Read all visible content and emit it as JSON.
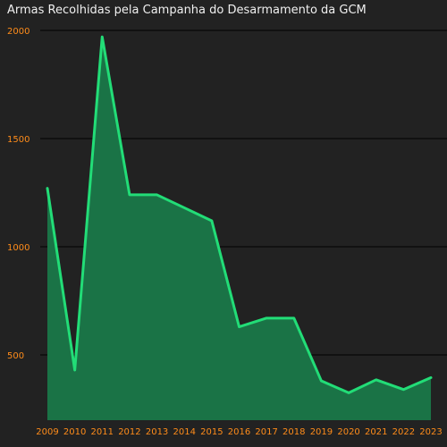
{
  "chart_data": {
    "type": "area",
    "title": "Armas Recolhidas pela Campanha do Desarmamento da GCM",
    "xlabel": "",
    "ylabel": "",
    "x": [
      "2009",
      "2010",
      "2011",
      "2012",
      "2013",
      "2014",
      "2015",
      "2016",
      "2017",
      "2018",
      "2019",
      "2020",
      "2021",
      "2022",
      "2023"
    ],
    "series": [
      {
        "values": [
          1270,
          430,
          1970,
          1240,
          1240,
          1180,
          1120,
          630,
          670,
          670,
          380,
          325,
          385,
          340,
          395
        ]
      }
    ],
    "ylim": [
      200,
      2000
    ],
    "yticks": [
      500,
      1000,
      1500,
      2000
    ],
    "grid": true,
    "colors": {
      "background": "#222222",
      "line": "#22dd77",
      "fill": "#1a7346",
      "tick_labels": "#ff8c1a",
      "gridlines": "#000000",
      "title": "#f0f0f0"
    }
  }
}
